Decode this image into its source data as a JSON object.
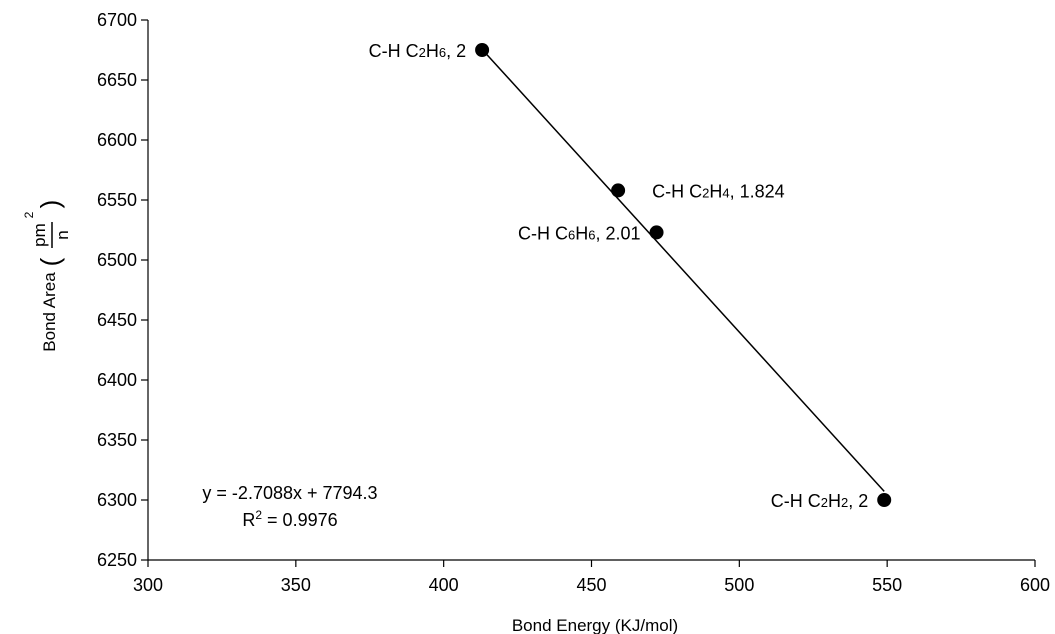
{
  "chart_data": {
    "type": "scatter",
    "title": "",
    "xlabel": "Bond Energy (KJ/mol)",
    "ylabel": {
      "prefix": "Bond Area",
      "open_paren": "(",
      "numerator": "pm",
      "exponent": "2",
      "denominator": "n",
      "close_paren": ")"
    },
    "xlim": [
      300,
      600
    ],
    "ylim": [
      6250,
      6700
    ],
    "xticks": [
      300,
      350,
      400,
      450,
      500,
      550,
      600
    ],
    "yticks": [
      6250,
      6300,
      6350,
      6400,
      6450,
      6500,
      6550,
      6600,
      6650,
      6700
    ],
    "grid": false,
    "marker_color": "#000000",
    "points": [
      {
        "x": 413,
        "y": 6675,
        "label": {
          "prefix": "C-H C",
          "s1": "2",
          "mid": "H",
          "s2": "6",
          "suffix": ", 2"
        },
        "label_side": "left"
      },
      {
        "x": 459,
        "y": 6558,
        "label": {
          "prefix": "C-H C",
          "s1": "2",
          "mid": "H",
          "s2": "4",
          "suffix": ", 1.824"
        },
        "label_side": "right"
      },
      {
        "x": 472,
        "y": 6523,
        "label": {
          "prefix": "C-H C",
          "s1": "6",
          "mid": "H",
          "s2": "6",
          "suffix": ", 2.01"
        },
        "label_side": "left"
      },
      {
        "x": 549,
        "y": 6300,
        "label": {
          "prefix": "C-H C",
          "s1": "2",
          "mid": "H",
          "s2": "2",
          "suffix": ", 2"
        },
        "label_side": "left"
      }
    ],
    "trendline": {
      "slope": -2.7088,
      "intercept": 7794.3,
      "x_range": [
        413,
        549
      ],
      "equation": "y = -2.7088x + 7794.3",
      "r2_prefix": "R",
      "r2_exp": "2",
      "r2_value": " = 0.9976"
    }
  }
}
